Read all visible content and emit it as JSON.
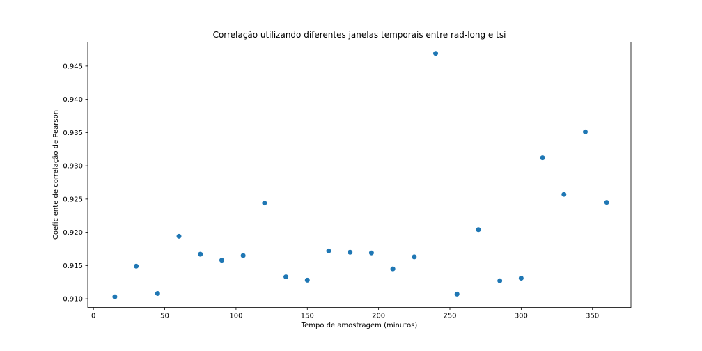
{
  "chart_data": {
    "type": "scatter",
    "title": "Correlação utilizando diferentes janelas temporais entre rad-long e tsi",
    "xlabel": "Tempo de amostragem (minutos)",
    "ylabel": "Coeficiente de correlação de Pearson",
    "xlim": [
      -4,
      377
    ],
    "ylim": [
      0.9087,
      0.9486
    ],
    "x_ticks": [
      0,
      50,
      100,
      150,
      200,
      250,
      300,
      350
    ],
    "y_ticks": [
      0.91,
      0.915,
      0.92,
      0.925,
      0.93,
      0.935,
      0.94,
      0.945
    ],
    "x_tick_labels": [
      "0",
      "50",
      "100",
      "150",
      "200",
      "250",
      "300",
      "350"
    ],
    "y_tick_labels": [
      "0.910",
      "0.915",
      "0.920",
      "0.925",
      "0.930",
      "0.935",
      "0.940",
      "0.945"
    ],
    "grid": false,
    "marker_color": "#1f77b4",
    "x": [
      15,
      30,
      45,
      60,
      75,
      90,
      105,
      120,
      135,
      150,
      165,
      180,
      195,
      210,
      225,
      240,
      255,
      270,
      285,
      300,
      315,
      330,
      345,
      360
    ],
    "y": [
      0.9103,
      0.9149,
      0.9108,
      0.9194,
      0.9167,
      0.9158,
      0.9165,
      0.9244,
      0.9133,
      0.9128,
      0.9172,
      0.917,
      0.9169,
      0.9145,
      0.9163,
      0.9469,
      0.9107,
      0.9204,
      0.9127,
      0.9131,
      0.9312,
      0.9257,
      0.9351,
      0.9245
    ]
  }
}
